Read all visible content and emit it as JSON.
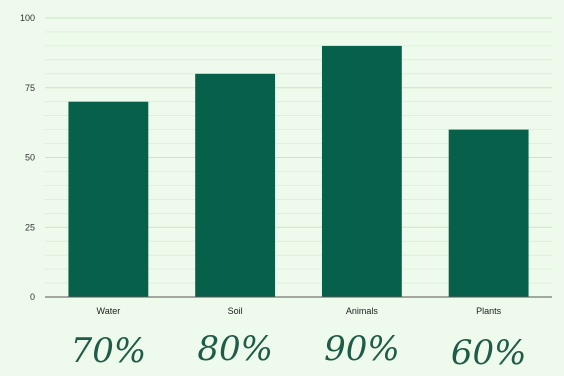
{
  "chart_data": {
    "type": "bar",
    "categories": [
      "Water",
      "Soil",
      "Animals",
      "Plants"
    ],
    "values": [
      70,
      80,
      90,
      60
    ],
    "annotations": [
      "70%",
      "80%",
      "90%",
      "60%"
    ],
    "title": "",
    "xlabel": "",
    "ylabel": "",
    "ylim": [
      0,
      100
    ],
    "yticks": [
      0,
      25,
      50,
      75,
      100
    ],
    "grid": true,
    "legend": "none"
  },
  "colors": {
    "bar": "#07604a",
    "background": "#eefaec",
    "grid": "#c9e6c6",
    "axis": "#555555",
    "annotation": "#1f5c48"
  }
}
